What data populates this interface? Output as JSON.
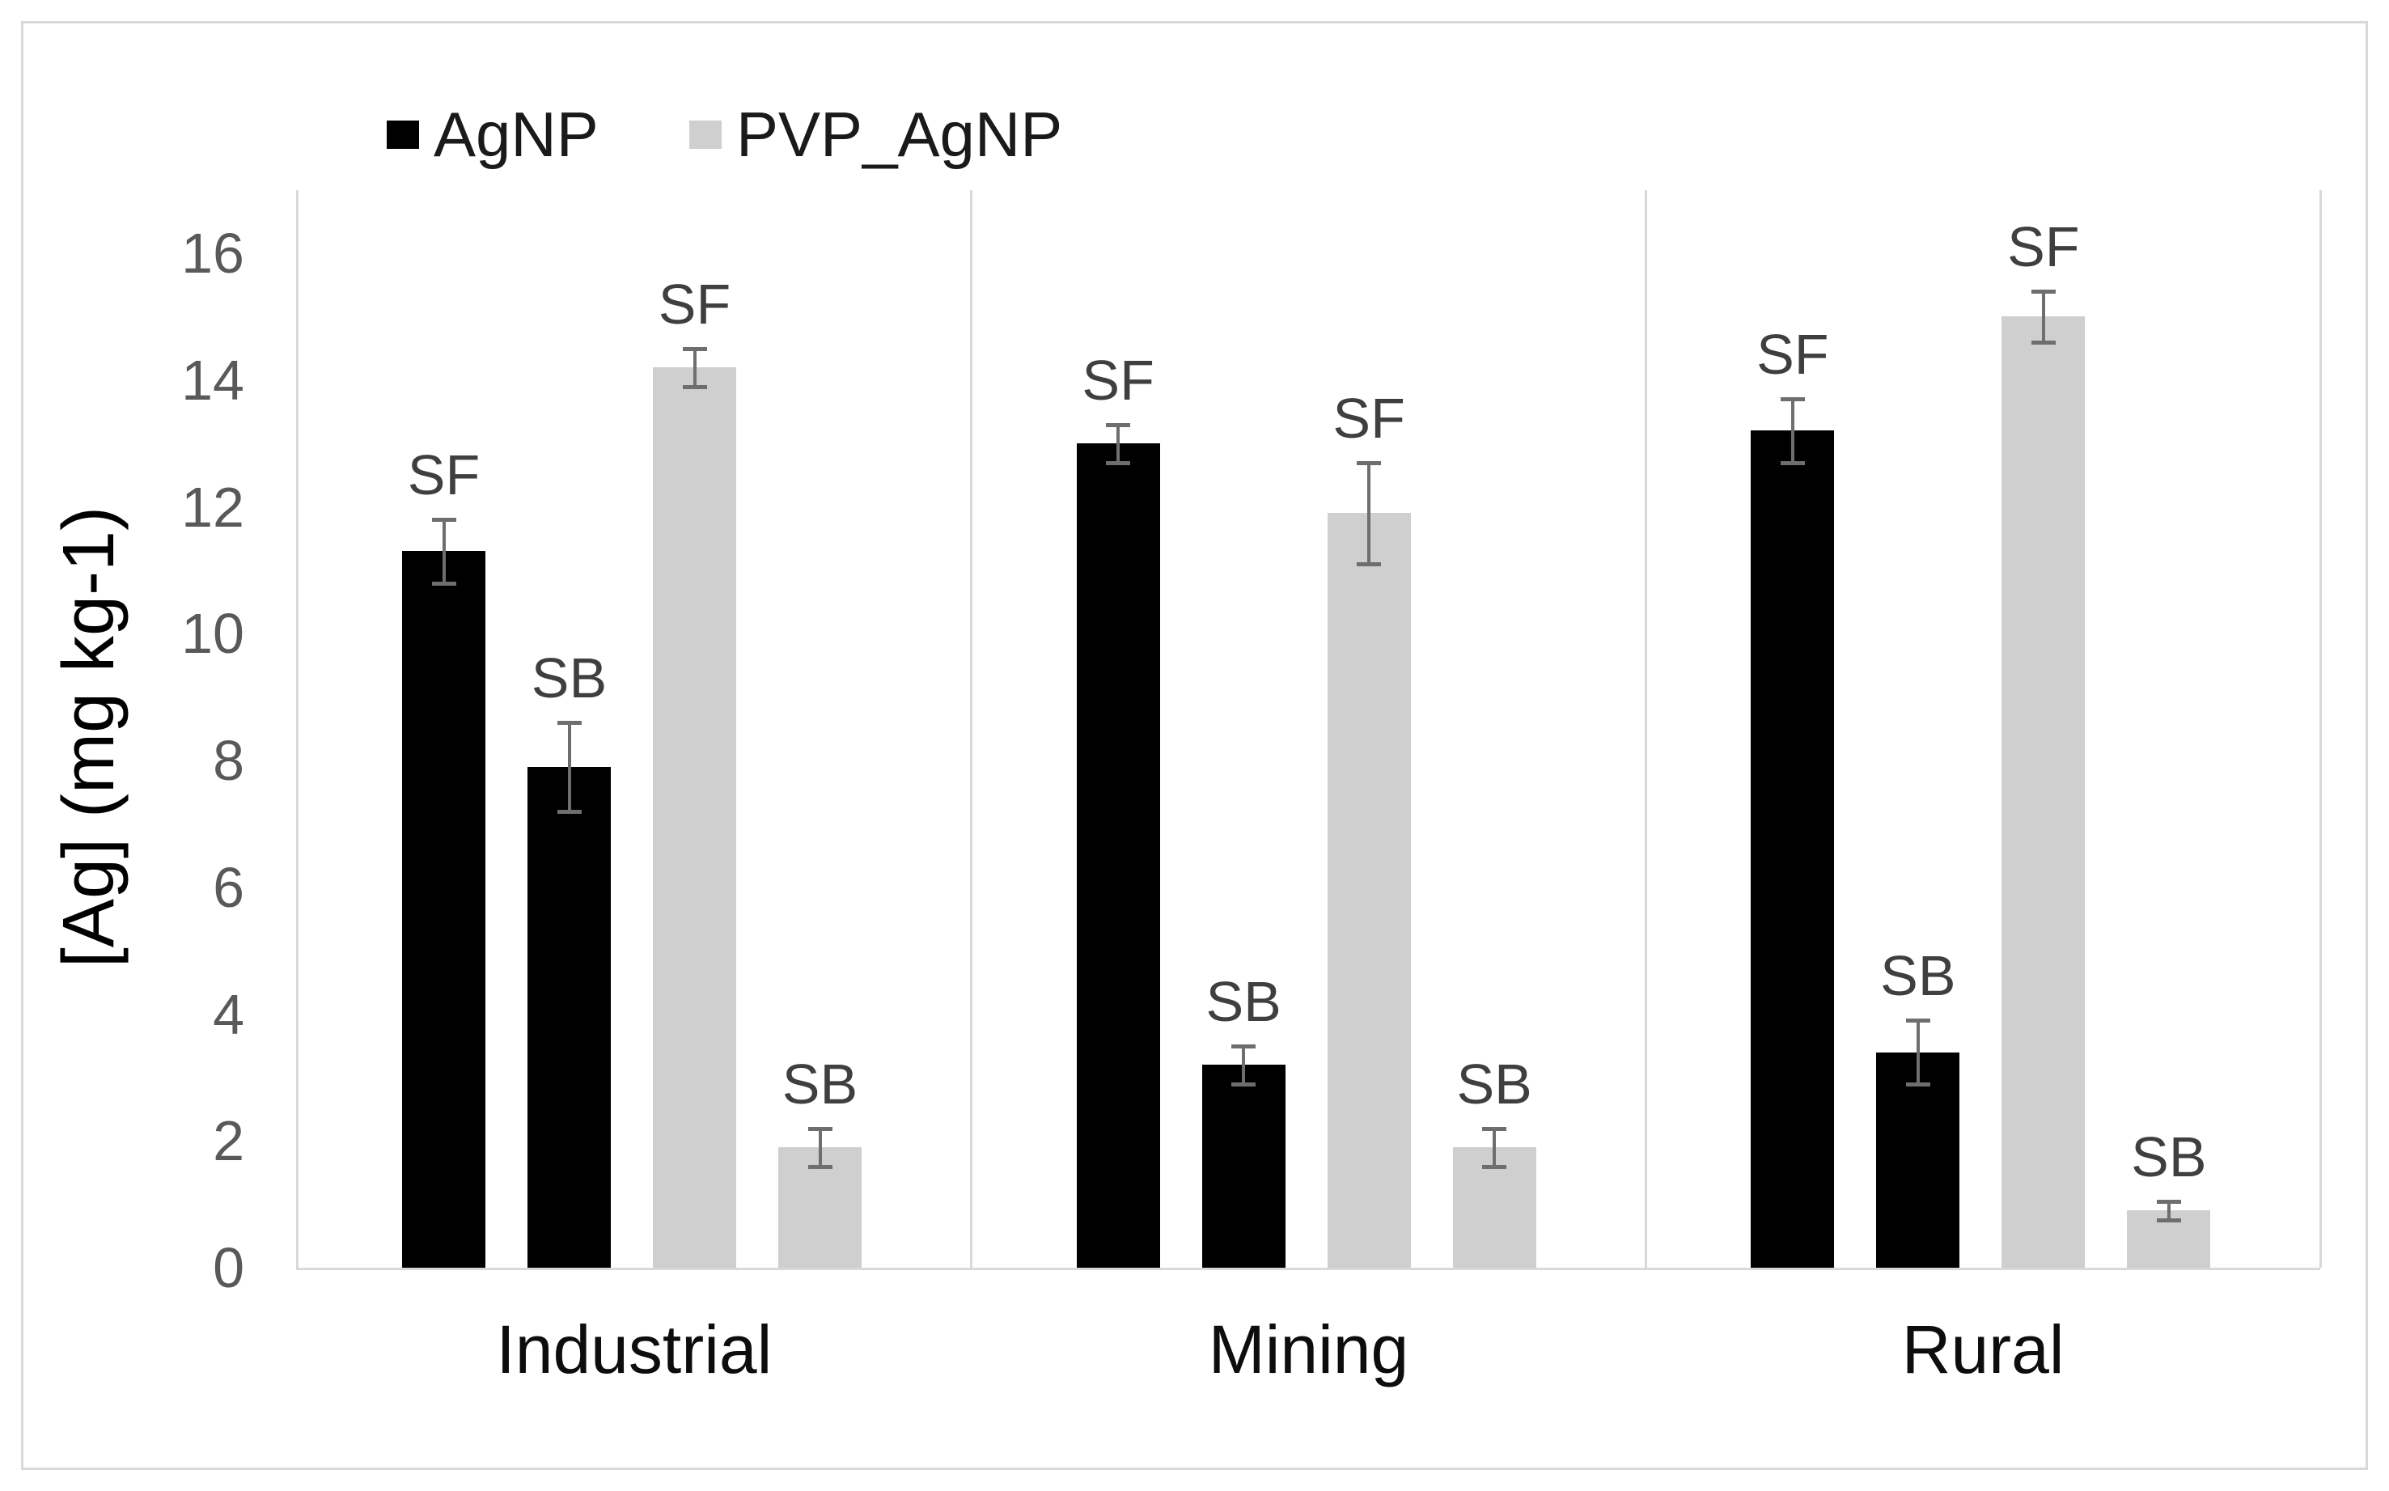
{
  "figure": {
    "background": "#ffffff",
    "border_color": "#d9d9d9"
  },
  "legend": {
    "position": "top-left",
    "items": [
      {
        "label": "AgNP",
        "color": "#000000"
      },
      {
        "label": "PVP_AgNP",
        "color": "#d0cfcf"
      }
    ]
  },
  "chart_data": {
    "type": "bar",
    "title": "",
    "xlabel": "",
    "ylabel": "[Ag] (mg kg-1)",
    "ylim": [
      0,
      17
    ],
    "yticks": [
      0,
      2,
      4,
      6,
      8,
      10,
      12,
      14,
      16
    ],
    "grid": false,
    "legend_position": "top-left",
    "axis_line_color": "#d9d9d9",
    "tick_label_color": "#595959",
    "bar_label_color": "#3f3f3f",
    "error_bar_color": "#6e6e6e",
    "series_colors": {
      "AgNP": "#000000",
      "PVP_AgNP": "#d0cfcf"
    },
    "categories": [
      "Industrial",
      "Mining",
      "Rural"
    ],
    "groups": [
      {
        "category": "Industrial",
        "bars": [
          {
            "series": "AgNP",
            "label": "SF",
            "value": 11.3,
            "error": 0.5
          },
          {
            "series": "AgNP",
            "label": "SB",
            "value": 7.9,
            "error": 0.7
          },
          {
            "series": "PVP_AgNP",
            "label": "SF",
            "value": 14.2,
            "error": 0.3
          },
          {
            "series": "PVP_AgNP",
            "label": "SB",
            "value": 1.9,
            "error": 0.3
          }
        ]
      },
      {
        "category": "Mining",
        "bars": [
          {
            "series": "AgNP",
            "label": "SF",
            "value": 13.0,
            "error": 0.3
          },
          {
            "series": "AgNP",
            "label": "SB",
            "value": 3.2,
            "error": 0.3
          },
          {
            "series": "PVP_AgNP",
            "label": "SF",
            "value": 11.9,
            "error": 0.8
          },
          {
            "series": "PVP_AgNP",
            "label": "SB",
            "value": 1.9,
            "error": 0.3
          }
        ]
      },
      {
        "category": "Rural",
        "bars": [
          {
            "series": "AgNP",
            "label": "SF",
            "value": 13.2,
            "error": 0.5
          },
          {
            "series": "AgNP",
            "label": "SB",
            "value": 3.4,
            "error": 0.5
          },
          {
            "series": "PVP_AgNP",
            "label": "SF",
            "value": 15.0,
            "error": 0.4
          },
          {
            "series": "PVP_AgNP",
            "label": "SB",
            "value": 0.9,
            "error": 0.15
          }
        ]
      }
    ]
  }
}
